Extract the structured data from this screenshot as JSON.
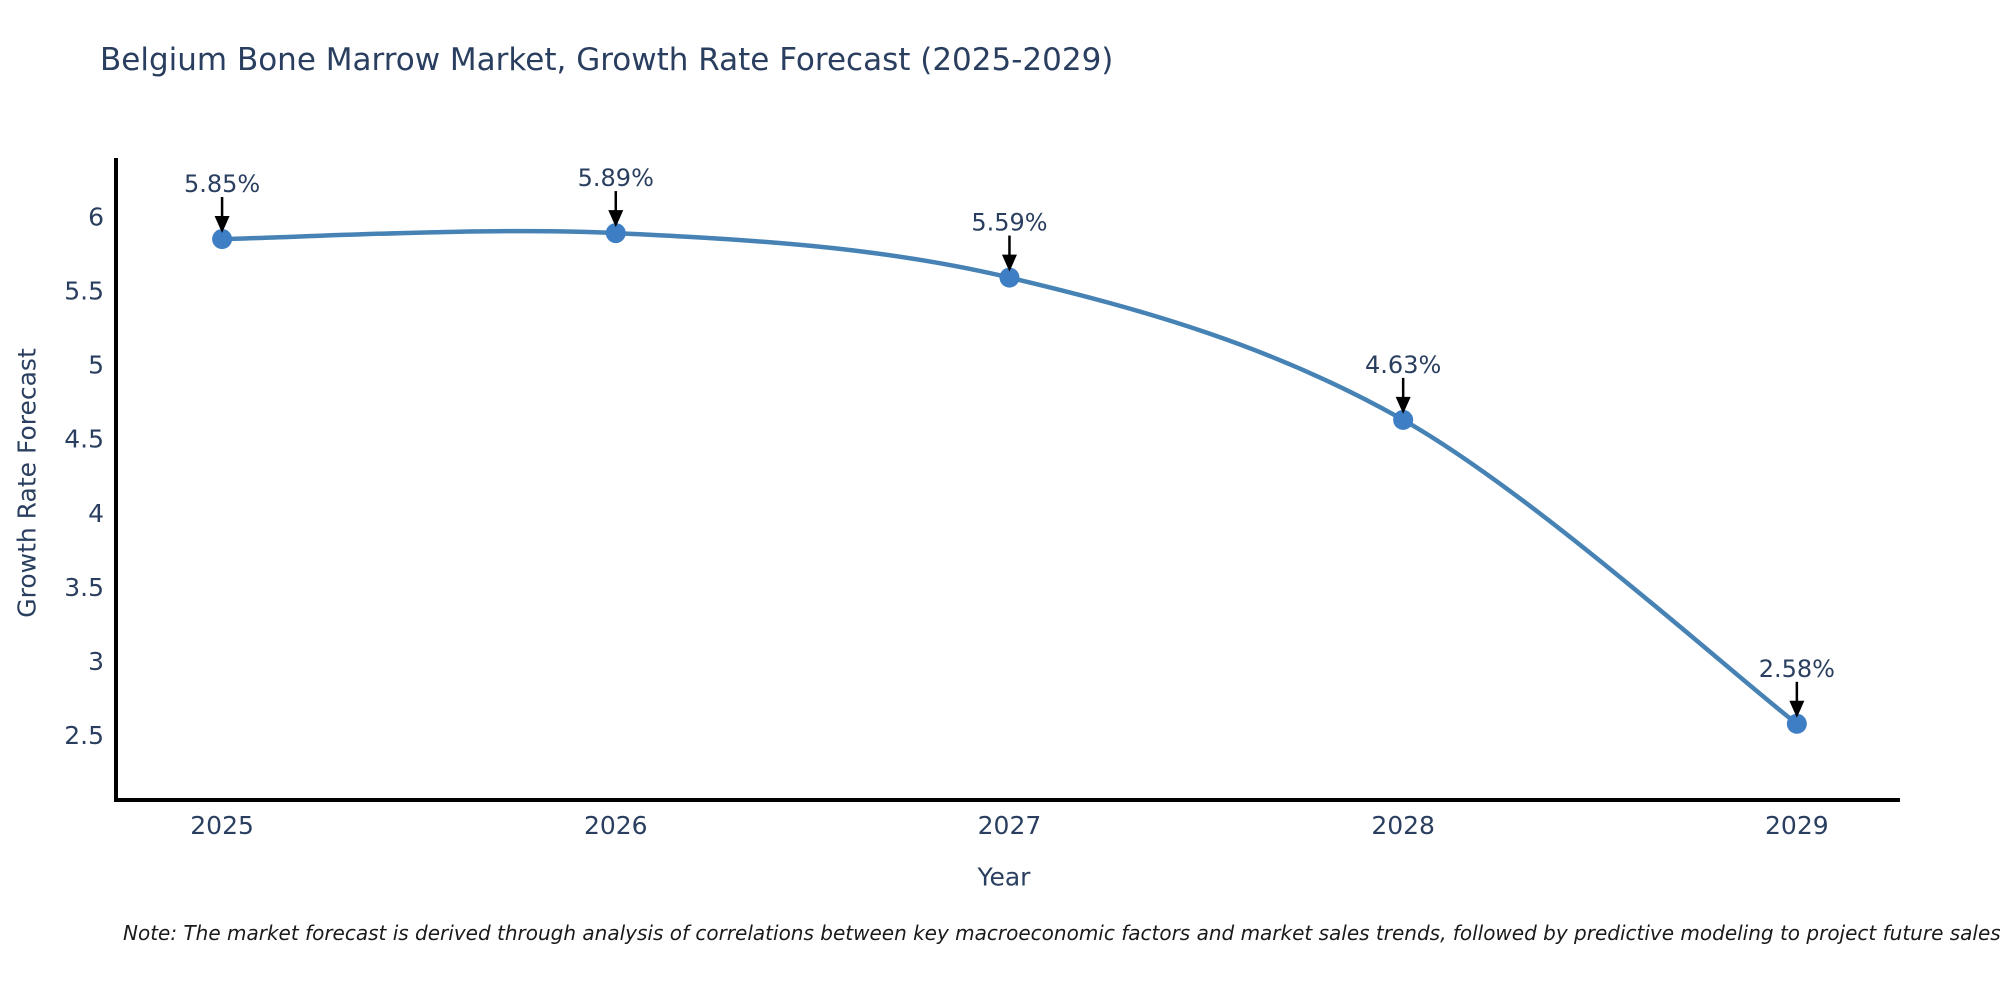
{
  "chart_data": {
    "type": "line",
    "title": "Belgium Bone Marrow Market, Growth Rate Forecast (2025-2029)",
    "xlabel": "Year",
    "ylabel": "Growth Rate Forecast",
    "x": [
      2025,
      2026,
      2027,
      2028,
      2029
    ],
    "values": [
      5.85,
      5.89,
      5.59,
      4.63,
      2.58
    ],
    "point_labels": [
      "5.85%",
      "5.89%",
      "5.59%",
      "4.63%",
      "2.58%"
    ],
    "x_ticks": [
      "2025",
      "2026",
      "2027",
      "2028",
      "2029"
    ],
    "y_ticks": [
      2.5,
      3,
      3.5,
      4,
      4.5,
      5,
      5.5,
      6
    ],
    "x_range": [
      2024.728,
      2029.262
    ],
    "y_range": [
      2.066,
      6.383
    ],
    "line_shape": "spline",
    "grid": false,
    "legend": false,
    "colors": {
      "line": "#4682b4",
      "marker": "#3d7ec4",
      "axis_line": "#000000",
      "text": "#2a3f5f",
      "annotation_text": "#2a3f5f",
      "annotation_arrow": "#000000",
      "background": "#ffffff"
    }
  },
  "note": {
    "text": "Note: The market forecast is derived through analysis of correlations between key macroeconomic factors and market sales trends, followed by predictive modeling to project future sales"
  }
}
